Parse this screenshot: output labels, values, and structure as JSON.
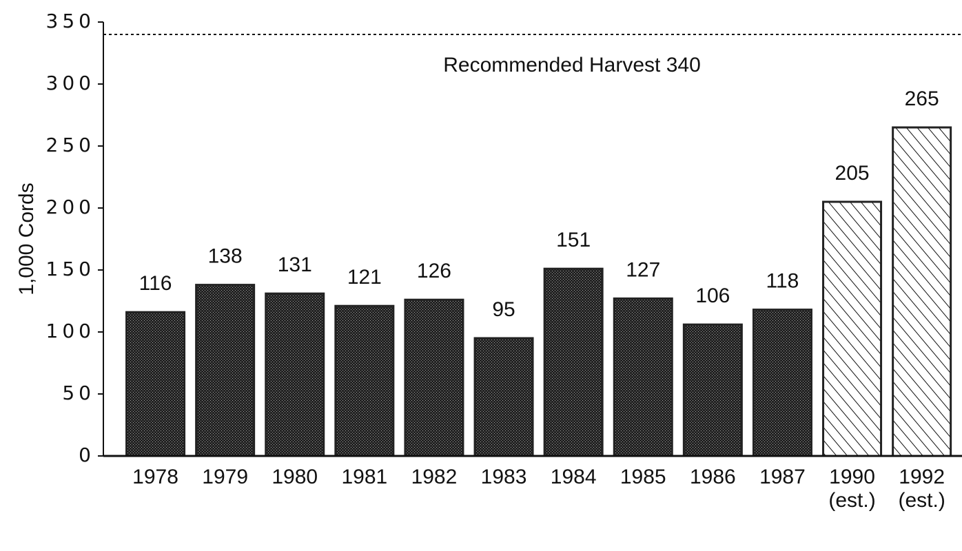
{
  "chart_data": {
    "type": "bar",
    "y_label": "1,000 Cords",
    "categories": [
      "1978",
      "1979",
      "1980",
      "1981",
      "1982",
      "1983",
      "1984",
      "1985",
      "1986",
      "1987",
      "1990 (est.)",
      "1992 (est.)"
    ],
    "values": [
      116,
      138,
      131,
      121,
      126,
      95,
      151,
      127,
      106,
      118,
      205,
      265
    ],
    "bar_styles": [
      "dotted",
      "dotted",
      "dotted",
      "dotted",
      "dotted",
      "dotted",
      "dotted",
      "dotted",
      "dotted",
      "dotted",
      "hatched",
      "hatched"
    ],
    "color": "#222222",
    "ylim": [
      0,
      350
    ],
    "yticks": [
      0,
      50,
      100,
      150,
      200,
      250,
      300,
      350
    ],
    "reference_line": {
      "value": 340,
      "label": "Recommended Harvest 340"
    }
  }
}
